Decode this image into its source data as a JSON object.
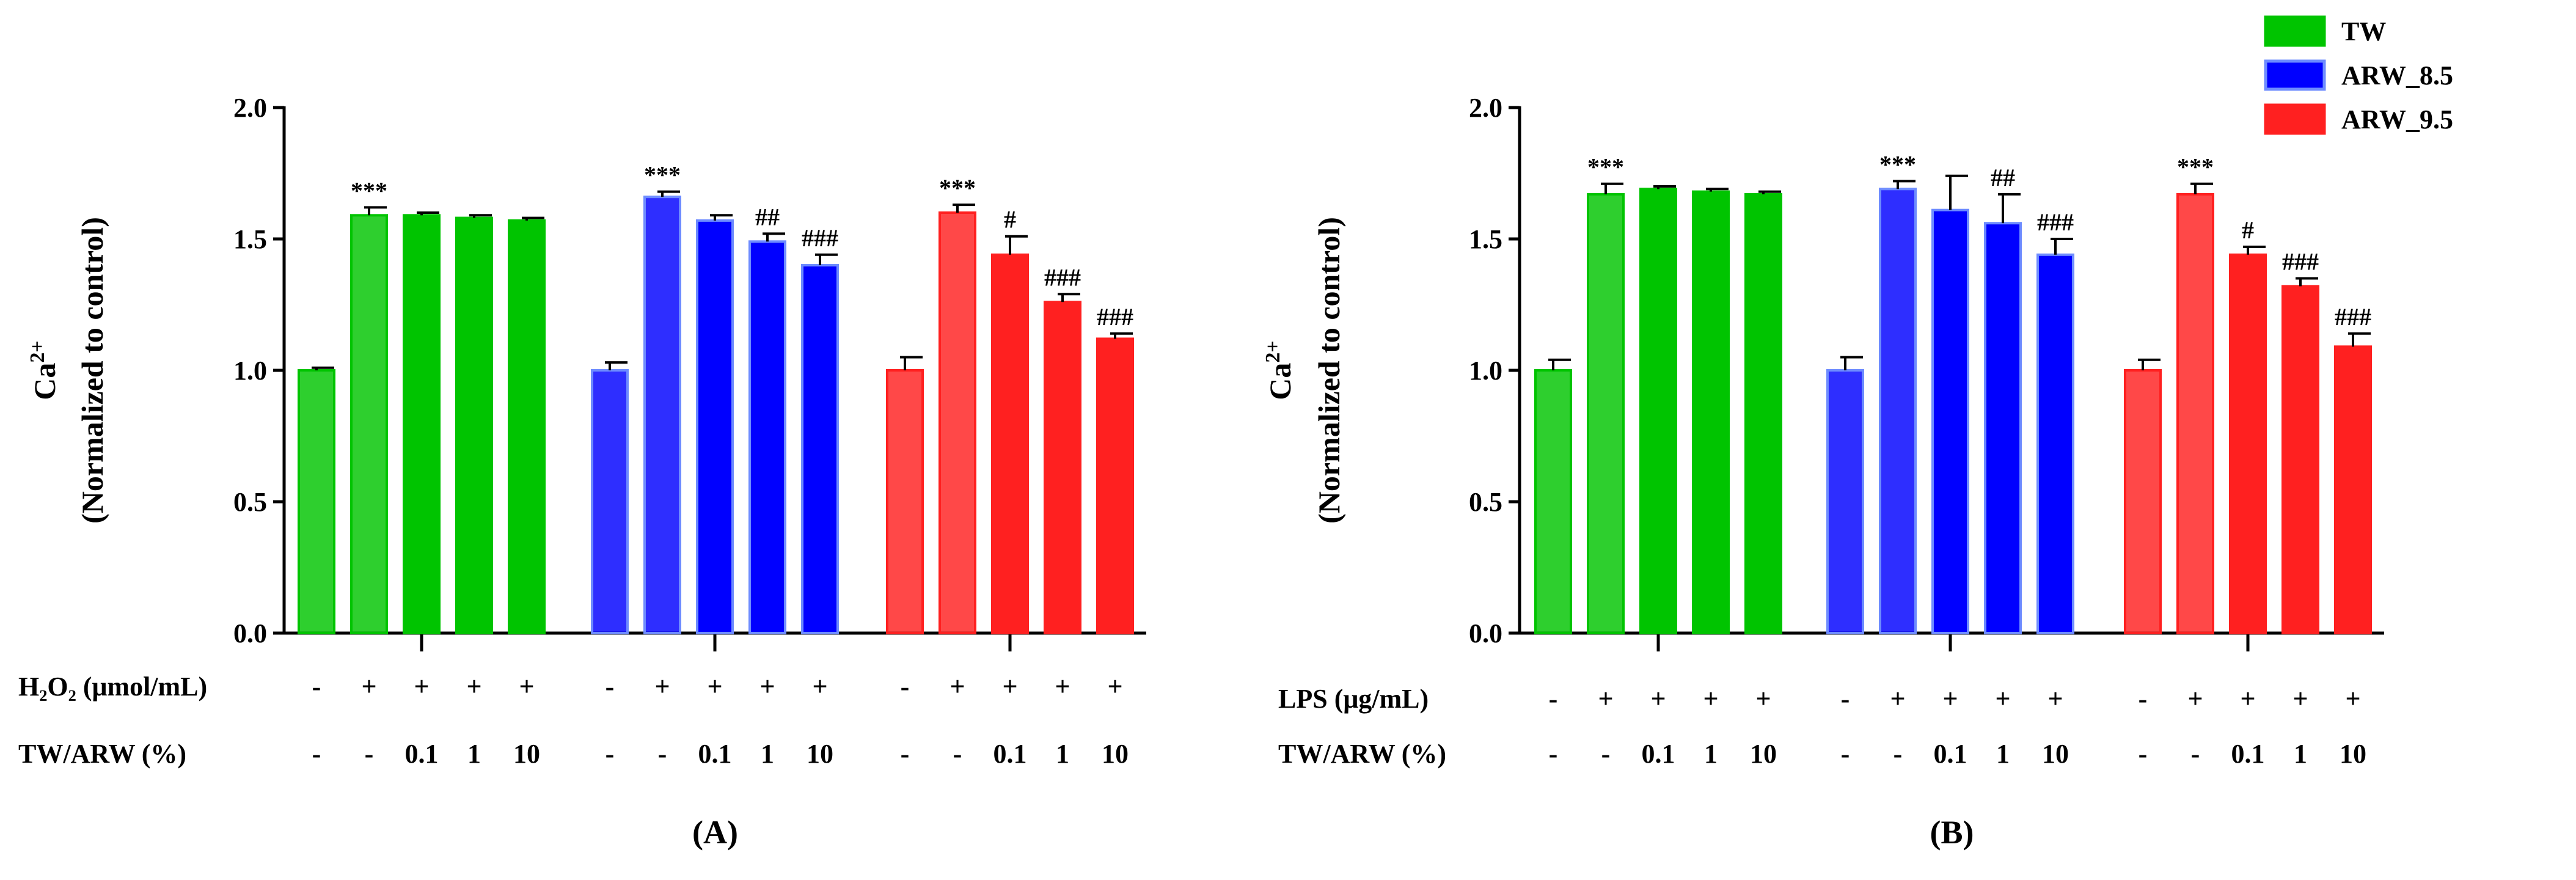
{
  "legend": [
    {
      "name": "TW",
      "fill": "#00c400",
      "stroke": "#00c400"
    },
    {
      "name": "ARW_8.5",
      "fill": "#0000ff",
      "stroke": "#6e8cff"
    },
    {
      "name": "ARW_9.5",
      "fill": "#ff2020",
      "stroke": "#ff2020"
    }
  ],
  "chart_data": [
    {
      "type": "bar",
      "panel_label": "(A)",
      "ylabel_main": "Ca",
      "ylabel_sup": "2+",
      "ylabel_sub": "(Normalized to control)",
      "ylim": [
        0,
        2.0
      ],
      "yticks": [
        "0.0",
        "0.5",
        "1.0",
        "1.5",
        "2.0"
      ],
      "groups": [
        {
          "series": "TW",
          "values": [
            1.0,
            1.59,
            1.59,
            1.58,
            1.57
          ],
          "errors": [
            0.01,
            0.03,
            0.01,
            0.01,
            0.01
          ],
          "sig": [
            "",
            "***",
            "",
            "",
            ""
          ]
        },
        {
          "series": "ARW_8.5",
          "values": [
            1.0,
            1.66,
            1.57,
            1.49,
            1.4
          ],
          "errors": [
            0.03,
            0.02,
            0.02,
            0.03,
            0.04
          ],
          "sig": [
            "",
            "***",
            "",
            "##",
            "###"
          ]
        },
        {
          "series": "ARW_9.5",
          "values": [
            1.0,
            1.6,
            1.44,
            1.26,
            1.12
          ],
          "errors": [
            0.05,
            0.03,
            0.07,
            0.03,
            0.02
          ],
          "sig": [
            "",
            "***",
            "#",
            "###",
            "###"
          ]
        }
      ],
      "treatment_rows": [
        {
          "label": "H₂O₂ (μmol/mL)",
          "cells": [
            "-",
            "+",
            "+",
            "+",
            "+"
          ]
        },
        {
          "label": "TW/ARW (%)",
          "cells": [
            "-",
            "-",
            "0.1",
            "1",
            "10"
          ]
        }
      ]
    },
    {
      "type": "bar",
      "panel_label": "(B)",
      "ylabel_main": "Ca",
      "ylabel_sup": "2+",
      "ylabel_sub": "(Normalized to control)",
      "ylim": [
        0,
        2.0
      ],
      "yticks": [
        "0.0",
        "0.5",
        "1.0",
        "1.5",
        "2.0"
      ],
      "groups": [
        {
          "series": "TW",
          "values": [
            1.0,
            1.67,
            1.69,
            1.68,
            1.67
          ],
          "errors": [
            0.04,
            0.04,
            0.01,
            0.01,
            0.01
          ],
          "sig": [
            "",
            "***",
            "",
            "",
            ""
          ]
        },
        {
          "series": "ARW_8.5",
          "values": [
            1.0,
            1.69,
            1.61,
            1.56,
            1.44
          ],
          "errors": [
            0.05,
            0.03,
            0.13,
            0.11,
            0.06
          ],
          "sig": [
            "",
            "***",
            "",
            "##",
            "###"
          ]
        },
        {
          "series": "ARW_9.5",
          "values": [
            1.0,
            1.67,
            1.44,
            1.32,
            1.09
          ],
          "errors": [
            0.04,
            0.04,
            0.03,
            0.03,
            0.05
          ],
          "sig": [
            "",
            "***",
            "#",
            "###",
            "###"
          ]
        }
      ],
      "treatment_rows": [
        {
          "label": "LPS (μg/mL)",
          "cells": [
            "-",
            "+",
            "+",
            "+",
            "+"
          ]
        },
        {
          "label": "TW/ARW (%)",
          "cells": [
            "-",
            "-",
            "0.1",
            "1",
            "10"
          ]
        }
      ]
    }
  ]
}
